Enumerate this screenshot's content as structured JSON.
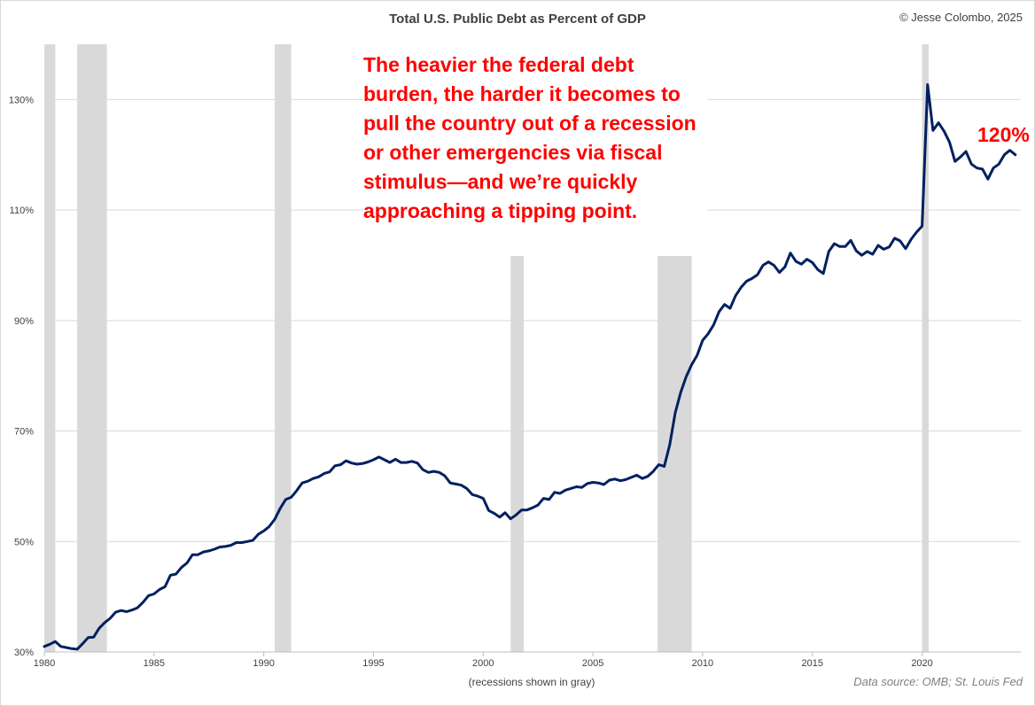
{
  "chart_data": {
    "type": "line",
    "title": "Total U.S. Public Debt as Percent of GDP",
    "copyright": "© Jesse Colombo, 2025",
    "annotation": "The heavier the federal debt burden, the harder it becomes to pull the country out of a recession or other emergencies via fiscal stimulus—and we’re quickly approaching a tipping point.",
    "last_value_label": "120%",
    "recession_note": "(recessions shown in gray)",
    "source": "Data source: OMB; St. Louis Fed",
    "xlim": [
      1980,
      2024.5
    ],
    "ylim": [
      30,
      140
    ],
    "x_ticks": [
      1980,
      1985,
      1990,
      1995,
      2000,
      2005,
      2010,
      2015,
      2020
    ],
    "y_ticks": [
      30,
      50,
      70,
      90,
      110,
      130
    ],
    "y_tick_labels": [
      "30%",
      "50%",
      "70%",
      "90%",
      "110%",
      "130%"
    ],
    "grid": "horizontal",
    "colors": {
      "line": "#002060",
      "recession": "#d9d9d9",
      "annotation": "#ff0000",
      "grid": "#d9d9d9"
    },
    "recessions": [
      {
        "start": 1980.0,
        "end": 1980.5
      },
      {
        "start": 1981.5,
        "end": 1982.85
      },
      {
        "start": 1990.5,
        "end": 1991.25
      },
      {
        "start": 2001.25,
        "end": 2001.85
      },
      {
        "start": 2007.95,
        "end": 2009.5
      },
      {
        "start": 2020.0,
        "end": 2020.3
      }
    ],
    "series": [
      {
        "x": [
          1980.0,
          1980.25,
          1980.5,
          1980.75,
          1981.0,
          1981.25,
          1981.5,
          1981.75,
          1982.0,
          1982.25,
          1982.5,
          1982.75,
          1983.0,
          1983.25,
          1983.5,
          1983.75,
          1984.0,
          1984.25,
          1984.5,
          1984.75,
          1985.0,
          1985.25,
          1985.5,
          1985.75,
          1986.0,
          1986.25,
          1986.5,
          1986.75,
          1987.0,
          1987.25,
          1987.5,
          1987.75,
          1988.0,
          1988.25,
          1988.5,
          1988.75,
          1989.0,
          1989.25,
          1989.5,
          1989.75,
          1990.0,
          1990.25,
          1990.5,
          1990.75,
          1991.0,
          1991.25,
          1991.5,
          1991.75,
          1992.0,
          1992.25,
          1992.5,
          1992.75,
          1993.0,
          1993.25,
          1993.5,
          1993.75,
          1994.0,
          1994.25,
          1994.5,
          1994.75,
          1995.0,
          1995.25,
          1995.5,
          1995.75,
          1996.0,
          1996.25,
          1996.5,
          1996.75,
          1997.0,
          1997.25,
          1997.5,
          1997.75,
          1998.0,
          1998.25,
          1998.5,
          1998.75,
          1999.0,
          1999.25,
          1999.5,
          1999.75,
          2000.0,
          2000.25,
          2000.5,
          2000.75,
          2001.0,
          2001.25,
          2001.5,
          2001.75,
          2002.0,
          2002.25,
          2002.5,
          2002.75,
          2003.0,
          2003.25,
          2003.5,
          2003.75,
          2004.0,
          2004.25,
          2004.5,
          2004.75,
          2005.0,
          2005.25,
          2005.5,
          2005.75,
          2006.0,
          2006.25,
          2006.5,
          2006.75,
          2007.0,
          2007.25,
          2007.5,
          2007.75,
          2008.0,
          2008.25,
          2008.5,
          2008.75,
          2009.0,
          2009.25,
          2009.5,
          2009.75,
          2010.0,
          2010.25,
          2010.5,
          2010.75,
          2011.0,
          2011.25,
          2011.5,
          2011.75,
          2012.0,
          2012.25,
          2012.5,
          2012.75,
          2013.0,
          2013.25,
          2013.5,
          2013.75,
          2014.0,
          2014.25,
          2014.5,
          2014.75,
          2015.0,
          2015.25,
          2015.5,
          2015.75,
          2016.0,
          2016.25,
          2016.5,
          2016.75,
          2017.0,
          2017.25,
          2017.5,
          2017.75,
          2018.0,
          2018.25,
          2018.5,
          2018.75,
          2019.0,
          2019.25,
          2019.5,
          2019.75,
          2020.0,
          2020.25,
          2020.5,
          2020.75,
          2021.0,
          2021.25,
          2021.5,
          2021.75,
          2022.0,
          2022.25,
          2022.5,
          2022.75,
          2023.0,
          2023.25,
          2023.5,
          2023.75,
          2024.0,
          2024.25
        ],
        "values": [
          31.0,
          31.4,
          31.9,
          31.0,
          30.8,
          30.6,
          30.5,
          31.5,
          32.6,
          32.7,
          34.3,
          35.3,
          36.1,
          37.2,
          37.5,
          37.3,
          37.6,
          38.0,
          39.0,
          40.2,
          40.5,
          41.3,
          41.8,
          43.9,
          44.1,
          45.3,
          46.1,
          47.6,
          47.6,
          48.1,
          48.3,
          48.6,
          49.0,
          49.1,
          49.3,
          49.8,
          49.8,
          50.0,
          50.2,
          51.3,
          51.9,
          52.7,
          54.0,
          56.0,
          57.6,
          58.0,
          59.2,
          60.6,
          60.9,
          61.4,
          61.7,
          62.3,
          62.6,
          63.7,
          63.9,
          64.6,
          64.2,
          64.0,
          64.1,
          64.4,
          64.8,
          65.3,
          64.8,
          64.3,
          64.9,
          64.3,
          64.3,
          64.5,
          64.2,
          63.0,
          62.5,
          62.7,
          62.5,
          61.9,
          60.6,
          60.4,
          60.2,
          59.6,
          58.5,
          58.2,
          57.8,
          55.6,
          55.1,
          54.4,
          55.2,
          54.1,
          54.8,
          55.7,
          55.7,
          56.1,
          56.6,
          57.8,
          57.6,
          58.9,
          58.7,
          59.3,
          59.6,
          59.9,
          59.8,
          60.5,
          60.7,
          60.6,
          60.3,
          61.1,
          61.3,
          61.0,
          61.2,
          61.6,
          62.0,
          61.4,
          61.8,
          62.7,
          63.9,
          63.6,
          67.5,
          73.3,
          77.0,
          79.8,
          82.0,
          83.7,
          86.4,
          87.6,
          89.2,
          91.6,
          92.9,
          92.2,
          94.5,
          96.0,
          97.1,
          97.6,
          98.3,
          100.0,
          100.6,
          100.0,
          98.7,
          99.7,
          102.2,
          100.7,
          100.2,
          101.1,
          100.5,
          99.2,
          98.5,
          102.5,
          103.9,
          103.4,
          103.4,
          104.5,
          102.6,
          101.8,
          102.5,
          102.0,
          103.6,
          102.9,
          103.3,
          104.9,
          104.4,
          103.0,
          104.7,
          106.0,
          107.1,
          132.7,
          124.4,
          125.8,
          124.3,
          122.3,
          118.8,
          119.6,
          120.6,
          118.3,
          117.6,
          117.4,
          115.6,
          117.6,
          118.3,
          120.0,
          120.8,
          120.0
        ]
      }
    ]
  }
}
